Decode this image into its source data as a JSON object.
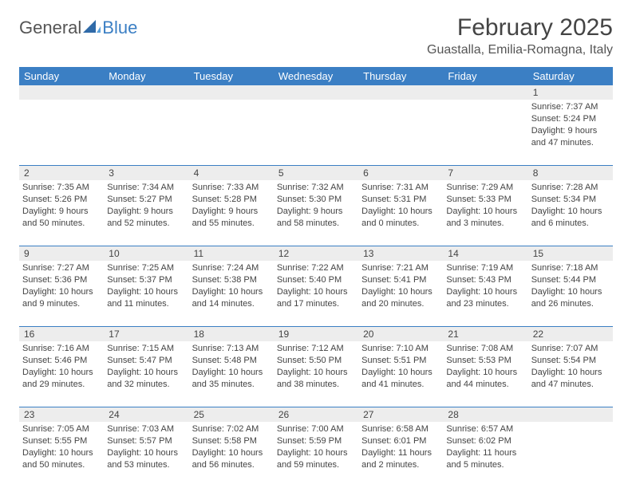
{
  "logo": {
    "text1": "General",
    "text2": "Blue"
  },
  "title": "February 2025",
  "location": "Guastalla, Emilia-Romagna, Italy",
  "colors": {
    "header_bg": "#3b7fc4",
    "header_text": "#ffffff",
    "row_divider": "#3b7fc4",
    "daynum_bg": "#ededed",
    "body_text": "#444444",
    "background": "#ffffff"
  },
  "day_names": [
    "Sunday",
    "Monday",
    "Tuesday",
    "Wednesday",
    "Thursday",
    "Friday",
    "Saturday"
  ],
  "weeks": [
    [
      {
        "n": "",
        "sunrise": "",
        "sunset": "",
        "daylight": ""
      },
      {
        "n": "",
        "sunrise": "",
        "sunset": "",
        "daylight": ""
      },
      {
        "n": "",
        "sunrise": "",
        "sunset": "",
        "daylight": ""
      },
      {
        "n": "",
        "sunrise": "",
        "sunset": "",
        "daylight": ""
      },
      {
        "n": "",
        "sunrise": "",
        "sunset": "",
        "daylight": ""
      },
      {
        "n": "",
        "sunrise": "",
        "sunset": "",
        "daylight": ""
      },
      {
        "n": "1",
        "sunrise": "Sunrise: 7:37 AM",
        "sunset": "Sunset: 5:24 PM",
        "daylight": "Daylight: 9 hours and 47 minutes."
      }
    ],
    [
      {
        "n": "2",
        "sunrise": "Sunrise: 7:35 AM",
        "sunset": "Sunset: 5:26 PM",
        "daylight": "Daylight: 9 hours and 50 minutes."
      },
      {
        "n": "3",
        "sunrise": "Sunrise: 7:34 AM",
        "sunset": "Sunset: 5:27 PM",
        "daylight": "Daylight: 9 hours and 52 minutes."
      },
      {
        "n": "4",
        "sunrise": "Sunrise: 7:33 AM",
        "sunset": "Sunset: 5:28 PM",
        "daylight": "Daylight: 9 hours and 55 minutes."
      },
      {
        "n": "5",
        "sunrise": "Sunrise: 7:32 AM",
        "sunset": "Sunset: 5:30 PM",
        "daylight": "Daylight: 9 hours and 58 minutes."
      },
      {
        "n": "6",
        "sunrise": "Sunrise: 7:31 AM",
        "sunset": "Sunset: 5:31 PM",
        "daylight": "Daylight: 10 hours and 0 minutes."
      },
      {
        "n": "7",
        "sunrise": "Sunrise: 7:29 AM",
        "sunset": "Sunset: 5:33 PM",
        "daylight": "Daylight: 10 hours and 3 minutes."
      },
      {
        "n": "8",
        "sunrise": "Sunrise: 7:28 AM",
        "sunset": "Sunset: 5:34 PM",
        "daylight": "Daylight: 10 hours and 6 minutes."
      }
    ],
    [
      {
        "n": "9",
        "sunrise": "Sunrise: 7:27 AM",
        "sunset": "Sunset: 5:36 PM",
        "daylight": "Daylight: 10 hours and 9 minutes."
      },
      {
        "n": "10",
        "sunrise": "Sunrise: 7:25 AM",
        "sunset": "Sunset: 5:37 PM",
        "daylight": "Daylight: 10 hours and 11 minutes."
      },
      {
        "n": "11",
        "sunrise": "Sunrise: 7:24 AM",
        "sunset": "Sunset: 5:38 PM",
        "daylight": "Daylight: 10 hours and 14 minutes."
      },
      {
        "n": "12",
        "sunrise": "Sunrise: 7:22 AM",
        "sunset": "Sunset: 5:40 PM",
        "daylight": "Daylight: 10 hours and 17 minutes."
      },
      {
        "n": "13",
        "sunrise": "Sunrise: 7:21 AM",
        "sunset": "Sunset: 5:41 PM",
        "daylight": "Daylight: 10 hours and 20 minutes."
      },
      {
        "n": "14",
        "sunrise": "Sunrise: 7:19 AM",
        "sunset": "Sunset: 5:43 PM",
        "daylight": "Daylight: 10 hours and 23 minutes."
      },
      {
        "n": "15",
        "sunrise": "Sunrise: 7:18 AM",
        "sunset": "Sunset: 5:44 PM",
        "daylight": "Daylight: 10 hours and 26 minutes."
      }
    ],
    [
      {
        "n": "16",
        "sunrise": "Sunrise: 7:16 AM",
        "sunset": "Sunset: 5:46 PM",
        "daylight": "Daylight: 10 hours and 29 minutes."
      },
      {
        "n": "17",
        "sunrise": "Sunrise: 7:15 AM",
        "sunset": "Sunset: 5:47 PM",
        "daylight": "Daylight: 10 hours and 32 minutes."
      },
      {
        "n": "18",
        "sunrise": "Sunrise: 7:13 AM",
        "sunset": "Sunset: 5:48 PM",
        "daylight": "Daylight: 10 hours and 35 minutes."
      },
      {
        "n": "19",
        "sunrise": "Sunrise: 7:12 AM",
        "sunset": "Sunset: 5:50 PM",
        "daylight": "Daylight: 10 hours and 38 minutes."
      },
      {
        "n": "20",
        "sunrise": "Sunrise: 7:10 AM",
        "sunset": "Sunset: 5:51 PM",
        "daylight": "Daylight: 10 hours and 41 minutes."
      },
      {
        "n": "21",
        "sunrise": "Sunrise: 7:08 AM",
        "sunset": "Sunset: 5:53 PM",
        "daylight": "Daylight: 10 hours and 44 minutes."
      },
      {
        "n": "22",
        "sunrise": "Sunrise: 7:07 AM",
        "sunset": "Sunset: 5:54 PM",
        "daylight": "Daylight: 10 hours and 47 minutes."
      }
    ],
    [
      {
        "n": "23",
        "sunrise": "Sunrise: 7:05 AM",
        "sunset": "Sunset: 5:55 PM",
        "daylight": "Daylight: 10 hours and 50 minutes."
      },
      {
        "n": "24",
        "sunrise": "Sunrise: 7:03 AM",
        "sunset": "Sunset: 5:57 PM",
        "daylight": "Daylight: 10 hours and 53 minutes."
      },
      {
        "n": "25",
        "sunrise": "Sunrise: 7:02 AM",
        "sunset": "Sunset: 5:58 PM",
        "daylight": "Daylight: 10 hours and 56 minutes."
      },
      {
        "n": "26",
        "sunrise": "Sunrise: 7:00 AM",
        "sunset": "Sunset: 5:59 PM",
        "daylight": "Daylight: 10 hours and 59 minutes."
      },
      {
        "n": "27",
        "sunrise": "Sunrise: 6:58 AM",
        "sunset": "Sunset: 6:01 PM",
        "daylight": "Daylight: 11 hours and 2 minutes."
      },
      {
        "n": "28",
        "sunrise": "Sunrise: 6:57 AM",
        "sunset": "Sunset: 6:02 PM",
        "daylight": "Daylight: 11 hours and 5 minutes."
      },
      {
        "n": "",
        "sunrise": "",
        "sunset": "",
        "daylight": ""
      }
    ]
  ]
}
